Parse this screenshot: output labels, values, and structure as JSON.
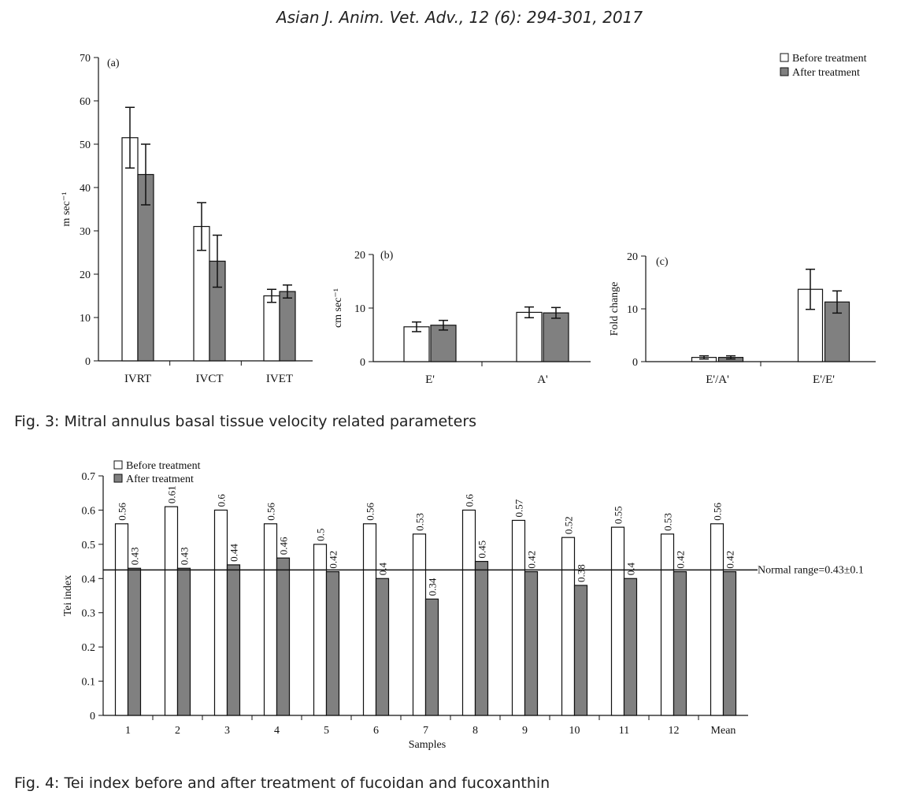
{
  "header": "Asian J. Anim. Vet. Adv., 12 (6): 294-301, 2017",
  "fig3_caption": "Fig. 3: Mitral annulus basal tissue velocity related parameters",
  "fig4_caption": "Fig. 4: Tei index before and after treatment of fucoidan and fucoxanthin",
  "colors": {
    "before": "#ffffff",
    "after": "#808080",
    "stroke": "#111111"
  },
  "chart_data": [
    {
      "type": "bar",
      "panel": "(a)",
      "ylabel": "m sec⁻¹",
      "ylim": [
        0,
        70
      ],
      "yticks": [
        0,
        10,
        20,
        30,
        40,
        50,
        60,
        70
      ],
      "categories": [
        "IVRT",
        "IVCT",
        "IVET"
      ],
      "legend": {
        "position": "top-right"
      },
      "series": [
        {
          "name": "Before treatment",
          "values": [
            51.5,
            31,
            15
          ],
          "errors": [
            7,
            5.5,
            1.5
          ]
        },
        {
          "name": "After treatment",
          "values": [
            43,
            23,
            16
          ],
          "errors": [
            7,
            6,
            1.5
          ]
        }
      ]
    },
    {
      "type": "bar",
      "panel": "(b)",
      "ylabel": "cm sec⁻¹",
      "ylim": [
        0,
        20
      ],
      "yticks": [
        0,
        10,
        20
      ],
      "categories": [
        "E'",
        "A'"
      ],
      "series": [
        {
          "name": "Before treatment",
          "values": [
            6.5,
            9.2
          ],
          "errors": [
            0.9,
            1
          ]
        },
        {
          "name": "After treatment",
          "values": [
            6.8,
            9.1
          ],
          "errors": [
            0.9,
            1
          ]
        }
      ]
    },
    {
      "type": "bar",
      "panel": "(c)",
      "ylabel": "Fold change",
      "ylim": [
        0,
        20
      ],
      "yticks": [
        0,
        10,
        20
      ],
      "categories": [
        "E'/A'",
        "E'/E'"
      ],
      "series": [
        {
          "name": "Before treatment",
          "values": [
            0.8,
            13.7
          ],
          "errors": [
            0.3,
            3.8
          ]
        },
        {
          "name": "After treatment",
          "values": [
            0.8,
            11.3
          ],
          "errors": [
            0.3,
            2.1
          ]
        }
      ]
    },
    {
      "type": "bar",
      "xlabel": "Samples",
      "ylabel": "Tei index",
      "ylim": [
        0,
        0.7
      ],
      "yticks": [
        "0",
        "0.1",
        "0.2",
        "0.3",
        "0.4",
        "0.5",
        "0.6",
        "0.7"
      ],
      "categories": [
        "1",
        "2",
        "3",
        "4",
        "5",
        "6",
        "7",
        "8",
        "9",
        "10",
        "11",
        "12",
        "Mean"
      ],
      "legend": {
        "position": "top-left"
      },
      "series": [
        {
          "name": "Before treatment",
          "values": [
            0.56,
            0.61,
            0.6,
            0.56,
            0.5,
            0.56,
            0.53,
            0.6,
            0.57,
            0.52,
            0.55,
            0.53,
            0.56
          ],
          "labels": [
            "0.56",
            "0.61",
            "0.6",
            "0.56",
            "0.5",
            "0.56",
            "0.53",
            "0.6",
            "0.57",
            "0.52",
            "0.55",
            "0.53",
            "0.56"
          ]
        },
        {
          "name": "After treatment",
          "values": [
            0.43,
            0.43,
            0.44,
            0.46,
            0.42,
            0.4,
            0.34,
            0.45,
            0.42,
            0.38,
            0.4,
            0.42,
            0.42
          ],
          "labels": [
            "0.43",
            "0.43",
            "0.44",
            "0.46",
            "0.42",
            "0.4",
            "0.34",
            "0.45",
            "0.42",
            "0.38",
            "0.4",
            "0.42",
            "0.42"
          ]
        }
      ],
      "reference_line": {
        "value": 0.425,
        "label": "Normal range=0.43±0.1"
      }
    }
  ]
}
